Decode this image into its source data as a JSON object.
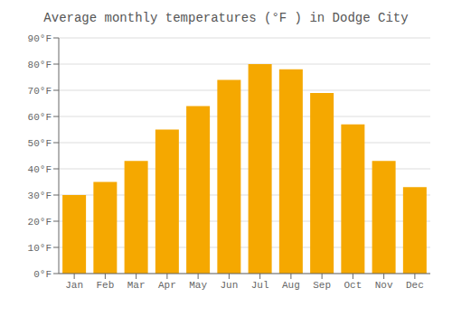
{
  "chart_data": {
    "type": "bar",
    "title": "Average monthly temperatures (°F ) in Dodge City",
    "categories": [
      "Jan",
      "Feb",
      "Mar",
      "Apr",
      "May",
      "Jun",
      "Jul",
      "Aug",
      "Sep",
      "Oct",
      "Nov",
      "Dec"
    ],
    "values": [
      30,
      35,
      43,
      55,
      64,
      74,
      80,
      78,
      69,
      57,
      43,
      33
    ],
    "color": "#F5A800",
    "ylim": [
      0,
      90
    ],
    "yticks": [
      {
        "value": 0,
        "label": "0°F"
      },
      {
        "value": 10,
        "label": "10°F"
      },
      {
        "value": 20,
        "label": "20°F"
      },
      {
        "value": 30,
        "label": "30°F"
      },
      {
        "value": 40,
        "label": "40°F"
      },
      {
        "value": 50,
        "label": "50°F"
      },
      {
        "value": 60,
        "label": "60°F"
      },
      {
        "value": 70,
        "label": "70°F"
      },
      {
        "value": 80,
        "label": "80°F"
      },
      {
        "value": 90,
        "label": "90°F"
      }
    ],
    "grid": true
  }
}
